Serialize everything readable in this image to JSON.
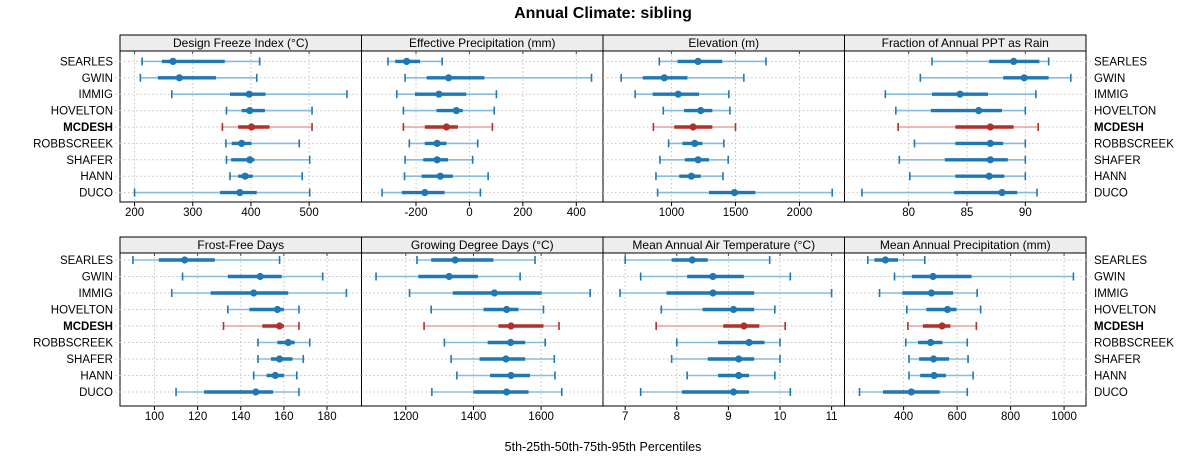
{
  "title": "Annual Climate: sibling",
  "caption": "5th-25th-50th-75th-95th Percentiles",
  "stations": [
    "SEARLES",
    "GWIN",
    "IMMIG",
    "HOVELTON",
    "MCDESH",
    "ROBBSCREEK",
    "SHAFER",
    "HANN",
    "DUCO"
  ],
  "highlight_station": "MCDESH",
  "percentile_labels": [
    "5th",
    "25th",
    "50th",
    "75th",
    "95th"
  ],
  "colors": {
    "series": "#1f77b4",
    "series_light": "#88bcdd",
    "highlight": "#b1302a",
    "highlight_light": "#e2a49f",
    "grid": "#c4c4c4",
    "strip_bg": "#ededed",
    "border": "#000000",
    "panel_bg": "#ffffff"
  },
  "chart_data": [
    {
      "type": "dot-whisker-percentile",
      "id": "design-freeze-index",
      "title": "Design Freeze Index (°C)",
      "xlim": [
        175,
        590
      ],
      "ticks": [
        200,
        300,
        400,
        500
      ],
      "series": [
        {
          "station": "SEARLES",
          "percentiles": [
            213,
            247,
            266,
            355,
            415
          ]
        },
        {
          "station": "GWIN",
          "percentiles": [
            210,
            240,
            277,
            340,
            410
          ]
        },
        {
          "station": "IMMIG",
          "percentiles": [
            264,
            364,
            397,
            425,
            565
          ]
        },
        {
          "station": "HOVELTON",
          "percentiles": [
            358,
            384,
            398,
            424,
            505
          ]
        },
        {
          "station": "MCDESH",
          "percentiles": [
            351,
            378,
            401,
            432,
            505
          ]
        },
        {
          "station": "ROBBSCREEK",
          "percentiles": [
            357,
            367,
            384,
            401,
            483
          ]
        },
        {
          "station": "SHAFER",
          "percentiles": [
            358,
            366,
            398,
            406,
            501
          ]
        },
        {
          "station": "HANN",
          "percentiles": [
            364,
            378,
            390,
            403,
            488
          ]
        },
        {
          "station": "DUCO",
          "percentiles": [
            200,
            347,
            381,
            410,
            501
          ]
        }
      ]
    },
    {
      "type": "dot-whisker-percentile",
      "id": "effective-precipitation",
      "title": "Effective Precipitation (mm)",
      "xlim": [
        -404,
        500
      ],
      "ticks": [
        -200,
        0,
        200,
        400
      ],
      "series": [
        {
          "station": "SEARLES",
          "percentiles": [
            -305,
            -278,
            -235,
            -185,
            -102
          ]
        },
        {
          "station": "GWIN",
          "percentiles": [
            -241,
            -160,
            -78,
            56,
            457
          ]
        },
        {
          "station": "IMMIG",
          "percentiles": [
            -272,
            -204,
            -114,
            -12,
            101
          ]
        },
        {
          "station": "HOVELTON",
          "percentiles": [
            -247,
            -123,
            -49,
            -25,
            93
          ]
        },
        {
          "station": "MCDESH",
          "percentiles": [
            -247,
            -167,
            -86,
            -43,
            86
          ]
        },
        {
          "station": "ROBBSCREEK",
          "percentiles": [
            -225,
            -167,
            -121,
            -86,
            31
          ]
        },
        {
          "station": "SHAFER",
          "percentiles": [
            -241,
            -173,
            -121,
            -80,
            12
          ]
        },
        {
          "station": "HANN",
          "percentiles": [
            -243,
            -179,
            -109,
            -62,
            70
          ]
        },
        {
          "station": "DUCO",
          "percentiles": [
            -327,
            -253,
            -167,
            -93,
            41
          ]
        }
      ]
    },
    {
      "type": "dot-whisker-percentile",
      "id": "elevation",
      "title": "Elevation (m)",
      "xlim": [
        464,
        2352
      ],
      "ticks": [
        1000,
        1500,
        2000
      ],
      "series": [
        {
          "station": "SEARLES",
          "percentiles": [
            904,
            1047,
            1207,
            1396,
            1738
          ]
        },
        {
          "station": "GWIN",
          "percentiles": [
            606,
            775,
            943,
            1124,
            1565
          ]
        },
        {
          "station": "IMMIG",
          "percentiles": [
            715,
            852,
            1052,
            1215,
            1448
          ]
        },
        {
          "station": "HOVELTON",
          "percentiles": [
            935,
            1098,
            1228,
            1319,
            1456
          ]
        },
        {
          "station": "MCDESH",
          "percentiles": [
            858,
            1021,
            1168,
            1319,
            1500
          ]
        },
        {
          "station": "ROBBSCREEK",
          "percentiles": [
            977,
            1085,
            1181,
            1241,
            1409
          ]
        },
        {
          "station": "SHAFER",
          "percentiles": [
            909,
            1104,
            1207,
            1293,
            1443
          ]
        },
        {
          "station": "HANN",
          "percentiles": [
            878,
            1060,
            1155,
            1228,
            1402
          ]
        },
        {
          "station": "DUCO",
          "percentiles": [
            891,
            1293,
            1492,
            1655,
            2256
          ]
        }
      ]
    },
    {
      "type": "dot-whisker-percentile",
      "id": "fraction-annual-ppt-as-rain",
      "title": "Fraction of Annual PPT as Rain",
      "xlim": [
        74.5,
        95.2
      ],
      "ticks": [
        80,
        85,
        90
      ],
      "series": [
        {
          "station": "SEARLES",
          "percentiles": [
            82.0,
            86.9,
            89.0,
            91.2,
            92.0
          ]
        },
        {
          "station": "GWIN",
          "percentiles": [
            81.0,
            88.1,
            89.9,
            92.0,
            93.9
          ]
        },
        {
          "station": "IMMIG",
          "percentiles": [
            78.0,
            82.0,
            84.4,
            86.8,
            90.9
          ]
        },
        {
          "station": "HOVELTON",
          "percentiles": [
            78.9,
            81.9,
            86.0,
            88.0,
            90.0
          ]
        },
        {
          "station": "MCDESH",
          "percentiles": [
            79.1,
            84.0,
            87.0,
            89.0,
            91.1
          ]
        },
        {
          "station": "ROBBSCREEK",
          "percentiles": [
            80.5,
            84.0,
            87.0,
            88.1,
            90.0
          ]
        },
        {
          "station": "SHAFER",
          "percentiles": [
            79.2,
            83.1,
            87.0,
            88.5,
            90.0
          ]
        },
        {
          "station": "HANN",
          "percentiles": [
            80.1,
            84.0,
            86.9,
            88.2,
            90.0
          ]
        },
        {
          "station": "DUCO",
          "percentiles": [
            76.0,
            83.9,
            88.0,
            89.3,
            91.0
          ]
        }
      ]
    },
    {
      "type": "dot-whisker-percentile",
      "id": "frost-free-days",
      "title": "Frost-Free Days",
      "xlim": [
        84,
        196
      ],
      "ticks": [
        100,
        120,
        140,
        160,
        180
      ],
      "series": [
        {
          "station": "SEARLES",
          "percentiles": [
            90,
            102,
            114,
            128,
            158
          ]
        },
        {
          "station": "GWIN",
          "percentiles": [
            113,
            134,
            149,
            159,
            178
          ]
        },
        {
          "station": "IMMIG",
          "percentiles": [
            108,
            126,
            146,
            162,
            189
          ]
        },
        {
          "station": "HOVELTON",
          "percentiles": [
            134,
            144,
            157,
            160,
            167
          ]
        },
        {
          "station": "MCDESH",
          "percentiles": [
            132,
            150,
            158,
            160,
            167
          ]
        },
        {
          "station": "ROBBSCREEK",
          "percentiles": [
            148,
            157,
            162,
            165,
            172
          ]
        },
        {
          "station": "SHAFER",
          "percentiles": [
            148,
            154,
            158,
            164,
            169
          ]
        },
        {
          "station": "HANN",
          "percentiles": [
            146,
            152,
            156,
            160,
            166
          ]
        },
        {
          "station": "DUCO",
          "percentiles": [
            110,
            123,
            147,
            155,
            167
          ]
        }
      ]
    },
    {
      "type": "dot-whisker-percentile",
      "id": "growing-degree-days",
      "title": "Growing Degree Days (°C)",
      "xlim": [
        1069,
        1783
      ],
      "ticks": [
        1200,
        1400,
        1600
      ],
      "series": [
        {
          "station": "SEARLES",
          "percentiles": [
            1233,
            1275,
            1346,
            1459,
            1582
          ]
        },
        {
          "station": "GWIN",
          "percentiles": [
            1112,
            1237,
            1328,
            1413,
            1538
          ]
        },
        {
          "station": "IMMIG",
          "percentiles": [
            1211,
            1339,
            1462,
            1602,
            1745
          ]
        },
        {
          "station": "HOVELTON",
          "percentiles": [
            1275,
            1430,
            1498,
            1533,
            1607
          ]
        },
        {
          "station": "MCDESH",
          "percentiles": [
            1254,
            1474,
            1511,
            1607,
            1653
          ]
        },
        {
          "station": "ROBBSCREEK",
          "percentiles": [
            1314,
            1442,
            1510,
            1553,
            1612
          ]
        },
        {
          "station": "SHAFER",
          "percentiles": [
            1334,
            1418,
            1496,
            1553,
            1639
          ]
        },
        {
          "station": "HANN",
          "percentiles": [
            1351,
            1449,
            1511,
            1567,
            1641
          ]
        },
        {
          "station": "DUCO",
          "percentiles": [
            1277,
            1400,
            1498,
            1563,
            1661
          ]
        }
      ]
    },
    {
      "type": "dot-whisker-percentile",
      "id": "mean-annual-air-temperature",
      "title": "Mean Annual Air Temperature (°C)",
      "xlim": [
        6.57,
        11.25
      ],
      "ticks": [
        7,
        8,
        9,
        10,
        11
      ],
      "series": [
        {
          "station": "SEARLES",
          "percentiles": [
            7.0,
            7.9,
            8.3,
            8.6,
            9.8
          ]
        },
        {
          "station": "GWIN",
          "percentiles": [
            7.3,
            8.2,
            8.7,
            9.3,
            10.2
          ]
        },
        {
          "station": "IMMIG",
          "percentiles": [
            6.9,
            7.8,
            8.7,
            9.5,
            11.0
          ]
        },
        {
          "station": "HOVELTON",
          "percentiles": [
            7.7,
            8.5,
            9.1,
            9.5,
            9.9
          ]
        },
        {
          "station": "MCDESH",
          "percentiles": [
            7.6,
            8.9,
            9.3,
            9.6,
            10.1
          ]
        },
        {
          "station": "ROBBSCREEK",
          "percentiles": [
            8.0,
            8.8,
            9.4,
            9.7,
            10.0
          ]
        },
        {
          "station": "SHAFER",
          "percentiles": [
            7.9,
            8.6,
            9.2,
            9.5,
            10.0
          ]
        },
        {
          "station": "HANN",
          "percentiles": [
            8.2,
            8.8,
            9.2,
            9.4,
            9.9
          ]
        },
        {
          "station": "DUCO",
          "percentiles": [
            7.3,
            8.1,
            9.1,
            9.4,
            10.2
          ]
        }
      ]
    },
    {
      "type": "dot-whisker-percentile",
      "id": "mean-annual-precipitation",
      "title": "Mean Annual Precipitation (mm)",
      "xlim": [
        179,
        1082
      ],
      "ticks": [
        400,
        600,
        800,
        1000
      ],
      "series": [
        {
          "station": "SEARLES",
          "percentiles": [
            266,
            291,
            332,
            379,
            479
          ]
        },
        {
          "station": "GWIN",
          "percentiles": [
            366,
            431,
            510,
            654,
            1035
          ]
        },
        {
          "station": "IMMIG",
          "percentiles": [
            310,
            395,
            504,
            585,
            675
          ]
        },
        {
          "station": "HOVELTON",
          "percentiles": [
            412,
            485,
            564,
            598,
            688
          ]
        },
        {
          "station": "MCDESH",
          "percentiles": [
            416,
            472,
            544,
            575,
            672
          ]
        },
        {
          "station": "ROBBSCREEK",
          "percentiles": [
            408,
            454,
            501,
            545,
            638
          ]
        },
        {
          "station": "SHAFER",
          "percentiles": [
            420,
            458,
            512,
            570,
            641
          ]
        },
        {
          "station": "HANN",
          "percentiles": [
            420,
            462,
            514,
            558,
            660
          ]
        },
        {
          "station": "DUCO",
          "percentiles": [
            235,
            323,
            429,
            535,
            638
          ]
        }
      ]
    }
  ]
}
